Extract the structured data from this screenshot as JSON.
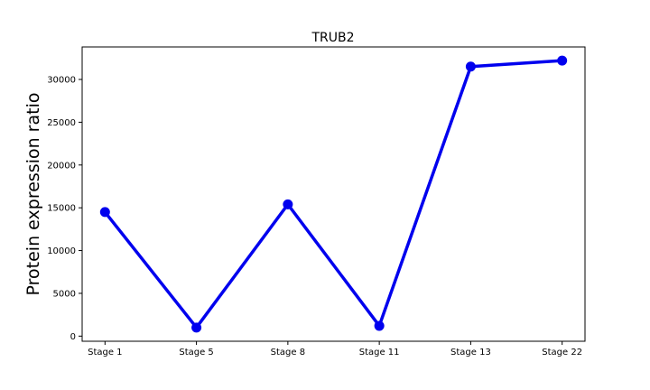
{
  "chart_data": {
    "type": "line",
    "title": "TRUB2",
    "xlabel": "",
    "ylabel": "Protein expression ratio",
    "categories": [
      "Stage 1",
      "Stage 5",
      "Stage 8",
      "Stage 11",
      "Stage 13",
      "Stage 22"
    ],
    "series": [
      {
        "values": [
          14500,
          1000,
          15400,
          1200,
          31500,
          32200
        ],
        "color": "#0000ee"
      }
    ],
    "ylim": [
      -600,
      33800
    ],
    "yticks": [
      0,
      5000,
      10000,
      15000,
      20000,
      25000,
      30000
    ],
    "ytick_labels": [
      "0",
      "5000",
      "10000",
      "15000",
      "20000",
      "25000",
      "30000"
    ],
    "grid": false,
    "legend": "none"
  }
}
